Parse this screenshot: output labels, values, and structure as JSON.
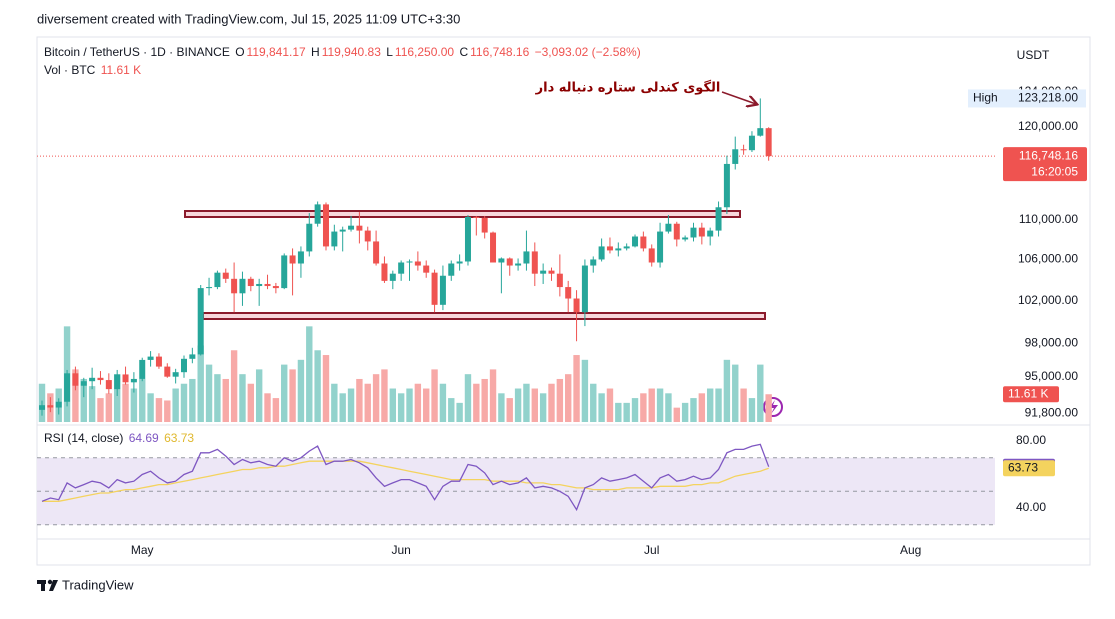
{
  "header": {
    "watermark": "diversement created with TradingView.com, Jul 15, 2025 11:09 UTC+3:30"
  },
  "footer": {
    "brand": "TradingView"
  },
  "chart_data": {
    "type": "candlestick",
    "symbol": "Bitcoin / TetherUS · 1D · BINANCE",
    "ohlc_labels": [
      [
        "O",
        "119,841.17"
      ],
      [
        "H",
        "119,940.83"
      ],
      [
        "L",
        "116,250.00"
      ],
      [
        "C",
        "116,748.16"
      ]
    ],
    "change_label": "−3,093.02 (−2.58%)",
    "currency": "USDT",
    "annotation": "الگوی کندلی ستاره دنباله دار",
    "up_color": "#26a69a",
    "down_color": "#ef5350",
    "log_scale": true,
    "xlim": [
      -0.6,
      114.1
    ],
    "xticks": [
      {
        "value": 12,
        "label": "May"
      },
      {
        "value": 43,
        "label": "Jun"
      },
      {
        "value": 73,
        "label": "Jul"
      },
      {
        "value": 104,
        "label": "Aug"
      }
    ],
    "ylim": [
      91060,
      130500
    ],
    "yticks": [
      {
        "value": 124000,
        "label": "124,000.00"
      },
      {
        "value": 120000,
        "label": "120,000.00"
      },
      {
        "value": 110000,
        "label": "110,000.00"
      },
      {
        "value": 106000,
        "label": "106,000.00"
      },
      {
        "value": 102000,
        "label": "102,000.00"
      },
      {
        "value": 98000,
        "label": "98,000.00"
      },
      {
        "value": 95000,
        "label": "95,000.00"
      },
      {
        "value": 91800,
        "label": "91,800.00"
      }
    ],
    "high_marker": {
      "label": "High",
      "value": 123218,
      "value_label": "123,218.00"
    },
    "last_price": {
      "value_label": "116,748.16",
      "countdown": "16:20:05"
    },
    "open": [
      92100,
      92500,
      92300,
      92800,
      95300,
      94200,
      94600,
      94900,
      94700,
      93900,
      95200,
      94500,
      94800,
      96500,
      96800,
      95900,
      95000,
      95400,
      96600,
      97000,
      103200,
      103300,
      104700,
      104100,
      102700,
      104100,
      103400,
      103600,
      103400,
      103200,
      106400,
      105600,
      106800,
      109600,
      111600,
      107300,
      108800,
      109000,
      109400,
      108900,
      107800,
      105600,
      103900,
      104600,
      105700,
      105800,
      105400,
      104700,
      101600,
      104400,
      105600,
      105800,
      110300,
      110200,
      108700,
      105700,
      106100,
      105400,
      105600,
      106800,
      104600,
      104900,
      104600,
      103300,
      102200,
      100900,
      105400,
      106000,
      107300,
      106900,
      107100,
      107300,
      108300,
      107100,
      105700,
      108800,
      109600,
      108000,
      108200,
      109200,
      108300,
      108900,
      111300,
      115900,
      117500,
      117400,
      119000,
      119841.17
    ],
    "high": [
      92900,
      93200,
      93100,
      95600,
      95900,
      94900,
      95800,
      95500,
      95300,
      95600,
      95900,
      95400,
      96700,
      97300,
      97100,
      96200,
      95700,
      96900,
      97600,
      103500,
      104200,
      104900,
      105100,
      105700,
      104800,
      104300,
      104100,
      104500,
      103700,
      106600,
      107100,
      107300,
      110700,
      111900,
      111800,
      109500,
      109300,
      110400,
      110800,
      109300,
      108900,
      106300,
      104900,
      105900,
      106000,
      106800,
      105900,
      105000,
      105400,
      105900,
      106500,
      110500,
      110400,
      110400,
      108800,
      106200,
      106200,
      106100,
      108900,
      107700,
      105600,
      105200,
      106500,
      103900,
      103000,
      106000,
      106300,
      108100,
      108200,
      107700,
      107600,
      108500,
      108800,
      107500,
      109700,
      110500,
      109800,
      108400,
      109700,
      109700,
      109200,
      111900,
      116800,
      118900,
      118000,
      119500,
      123218,
      119940.83
    ],
    "low": [
      91600,
      91900,
      91700,
      92400,
      93800,
      93200,
      93900,
      94300,
      93500,
      93300,
      94300,
      93600,
      94600,
      95900,
      95700,
      94900,
      94400,
      94900,
      96200,
      96900,
      102500,
      103100,
      103700,
      100900,
      101500,
      102900,
      101500,
      103100,
      102700,
      103100,
      102500,
      104200,
      106300,
      109300,
      106900,
      106900,
      106800,
      108800,
      107600,
      106900,
      105400,
      103700,
      103100,
      103900,
      103900,
      104900,
      104200,
      100900,
      101100,
      103900,
      104900,
      105400,
      108400,
      108100,
      105700,
      102700,
      104400,
      104900,
      104900,
      103400,
      103600,
      103900,
      102400,
      100900,
      98200,
      99600,
      104700,
      105800,
      106600,
      106300,
      106900,
      107200,
      106800,
      105300,
      105200,
      108600,
      107300,
      107800,
      107800,
      107500,
      107400,
      108300,
      110600,
      115300,
      116900,
      117200,
      118900,
      116250.0
    ],
    "close": [
      92500,
      92300,
      92800,
      95300,
      94200,
      94600,
      94900,
      94700,
      93900,
      95200,
      94500,
      94800,
      96500,
      96800,
      95900,
      95000,
      95400,
      96600,
      97000,
      103200,
      103300,
      104700,
      104100,
      102700,
      104100,
      103400,
      103600,
      103400,
      103200,
      106400,
      105600,
      106800,
      109600,
      111600,
      107300,
      108800,
      109000,
      109400,
      108900,
      107800,
      105600,
      103900,
      104600,
      105700,
      105800,
      105400,
      104700,
      101600,
      104400,
      105600,
      105800,
      110300,
      110200,
      108700,
      105700,
      106100,
      105400,
      105600,
      106800,
      104600,
      104900,
      104600,
      103300,
      102200,
      100900,
      105400,
      106000,
      107300,
      106900,
      107100,
      107300,
      108300,
      107100,
      105700,
      108800,
      109600,
      108000,
      108200,
      109200,
      108300,
      108900,
      111300,
      115900,
      117500,
      117400,
      119000,
      119841.17,
      116748.16
    ],
    "volume": {
      "name": "Vol · BTC",
      "last_label": "11.61 K",
      "up_color": "#92d2cc",
      "down_color": "#f7a9a7",
      "ylim": [
        0,
        46
      ],
      "values": [
        16,
        12,
        14,
        40,
        22,
        18,
        15,
        10,
        12,
        20,
        16,
        14,
        18,
        12,
        10,
        9,
        14,
        16,
        18,
        32,
        24,
        20,
        18,
        30,
        20,
        16,
        22,
        12,
        10,
        24,
        22,
        26,
        40,
        30,
        28,
        16,
        12,
        14,
        18,
        16,
        20,
        22,
        14,
        12,
        14,
        16,
        14,
        22,
        16,
        10,
        8,
        20,
        16,
        18,
        22,
        12,
        10,
        14,
        16,
        14,
        12,
        16,
        18,
        20,
        28,
        26,
        16,
        12,
        14,
        8,
        8,
        10,
        12,
        14,
        14,
        12,
        6,
        8,
        10,
        12,
        14,
        14,
        26,
        24,
        14,
        10,
        24,
        11.61
      ]
    },
    "rsi": {
      "name": "RSI (14, close)",
      "color": "#7e57c2",
      "ma_color": "#f4d35e",
      "band_color": "#ede7f6",
      "ylim": [
        22.1,
        87.8
      ],
      "bands": [
        70,
        50,
        30
      ],
      "yticks": [
        {
          "value": 80,
          "label": "80.00"
        },
        {
          "value": 40,
          "label": "40.00"
        }
      ],
      "values": [
        44,
        46,
        45,
        55,
        52,
        54,
        56,
        55,
        52,
        57,
        55,
        56,
        60,
        62,
        58,
        55,
        56,
        60,
        62,
        73,
        73,
        75,
        71,
        66,
        69,
        67,
        68,
        66,
        65,
        70,
        68,
        70,
        74,
        77,
        66,
        68,
        68,
        69,
        67,
        64,
        58,
        53,
        55,
        57,
        57,
        55,
        53,
        45,
        53,
        56,
        56,
        66,
        65,
        61,
        54,
        56,
        54,
        55,
        58,
        52,
        53,
        52,
        50,
        47,
        39,
        52,
        54,
        58,
        56,
        57,
        58,
        60,
        56,
        52,
        58,
        60,
        56,
        57,
        59,
        57,
        58,
        63,
        73,
        75,
        75,
        77,
        78,
        64.69
      ],
      "ma": [
        44,
        44,
        44,
        45,
        46,
        47,
        48,
        49,
        49,
        50,
        51,
        51,
        52,
        53,
        54,
        54,
        55,
        56,
        57,
        58,
        59,
        60,
        61,
        62,
        63,
        63,
        64,
        64,
        65,
        65,
        66,
        67,
        68,
        68,
        68,
        68,
        68,
        68,
        68,
        67,
        66,
        65,
        64,
        63,
        62,
        61,
        60,
        59,
        58,
        57,
        57,
        57,
        57,
        57,
        56,
        56,
        56,
        56,
        55,
        55,
        55,
        54,
        54,
        53,
        52,
        52,
        51,
        51,
        51,
        51,
        52,
        52,
        52,
        52,
        53,
        53,
        53,
        53,
        54,
        54,
        55,
        55,
        57,
        59,
        60,
        61,
        62,
        63.73
      ]
    }
  }
}
